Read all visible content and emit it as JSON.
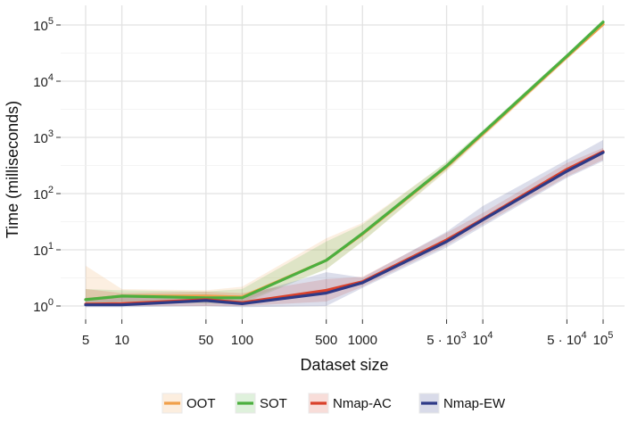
{
  "chart_data": {
    "type": "line",
    "title": "",
    "xlabel": "Dataset size",
    "ylabel": "Time (milliseconds)",
    "x_scale": "log",
    "y_scale": "log",
    "xlim": [
      5,
      100000
    ],
    "ylim": [
      1,
      100000
    ],
    "grid": true,
    "legend_position": "bottom",
    "x_ticks": [
      5,
      10,
      50,
      100,
      500,
      1000,
      5000,
      10000,
      50000,
      100000
    ],
    "x_tick_labels": [
      {
        "text": "5"
      },
      {
        "text": "10"
      },
      {
        "text": "50"
      },
      {
        "text": "100"
      },
      {
        "text": "500"
      },
      {
        "text": "1000"
      },
      {
        "text": "5 · 10",
        "sup": "3"
      },
      {
        "text": "10",
        "sup": "4"
      },
      {
        "text": "5 · 10",
        "sup": "4"
      },
      {
        "text": "10",
        "sup": "5"
      }
    ],
    "y_ticks": [
      1,
      10,
      100,
      1000,
      10000,
      100000
    ],
    "y_tick_labels": [
      {
        "text": "10",
        "sup": "0"
      },
      {
        "text": "10",
        "sup": "1"
      },
      {
        "text": "10",
        "sup": "2"
      },
      {
        "text": "10",
        "sup": "3"
      },
      {
        "text": "10",
        "sup": "4"
      },
      {
        "text": "10",
        "sup": "5"
      }
    ],
    "series": [
      {
        "name": "OOT",
        "color": "#F0A04B",
        "x": [
          5,
          10,
          50,
          100,
          500,
          1000,
          5000,
          10000,
          50000,
          100000
        ],
        "y": [
          1.3,
          1.5,
          1.5,
          1.45,
          6.5,
          19,
          300,
          1150,
          27000,
          103000
        ],
        "lower": [
          1.0,
          1.1,
          1.2,
          1.2,
          4.5,
          14,
          250,
          1000,
          24000,
          95000
        ],
        "upper": [
          5.2,
          2.0,
          1.9,
          2.2,
          16,
          30,
          360,
          1300,
          30000,
          115000
        ]
      },
      {
        "name": "SOT",
        "color": "#4CAF3F",
        "x": [
          5,
          10,
          50,
          100,
          500,
          1000,
          5000,
          10000,
          50000,
          100000
        ],
        "y": [
          1.3,
          1.5,
          1.4,
          1.4,
          6.5,
          19.5,
          310,
          1200,
          28000,
          113000
        ],
        "lower": [
          1.05,
          1.2,
          1.1,
          1.1,
          4.5,
          14,
          260,
          1050,
          25000,
          100000
        ],
        "upper": [
          2.0,
          1.9,
          1.8,
          2.0,
          14,
          28,
          370,
          1350,
          31000,
          125000
        ]
      },
      {
        "name": "Nmap-AC",
        "color": "#D9412B",
        "x": [
          5,
          10,
          50,
          100,
          500,
          1000,
          5000,
          10000,
          50000,
          100000
        ],
        "y": [
          1.08,
          1.1,
          1.3,
          1.15,
          1.9,
          2.7,
          15,
          35,
          270,
          560
        ],
        "lower": [
          1.0,
          1.0,
          1.0,
          1.0,
          1.2,
          2.2,
          12,
          28,
          200,
          400
        ],
        "upper": [
          2.0,
          1.7,
          1.8,
          1.7,
          3.0,
          3.3,
          20,
          45,
          350,
          650
        ]
      },
      {
        "name": "Nmap-EW",
        "color": "#2E3A87",
        "x": [
          5,
          10,
          50,
          100,
          500,
          1000,
          5000,
          10000,
          50000,
          100000
        ],
        "y": [
          1.05,
          1.05,
          1.25,
          1.1,
          1.7,
          2.6,
          14,
          34,
          250,
          540
        ],
        "lower": [
          0.95,
          0.95,
          1.0,
          0.95,
          1.0,
          2.1,
          11,
          26,
          190,
          380
        ],
        "upper": [
          1.4,
          1.5,
          1.6,
          1.5,
          4.0,
          3.2,
          21,
          60,
          400,
          900
        ]
      }
    ]
  }
}
